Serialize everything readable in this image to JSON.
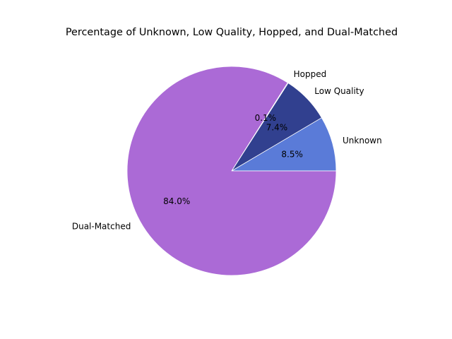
{
  "chart_data": {
    "type": "pie",
    "title": "Percentage of Unknown, Low Quality, Hopped, and Dual-Matched",
    "slices": [
      {
        "label": "Unknown",
        "value": 8.5,
        "pct_label": "8.5%",
        "color": "#5a7bd8"
      },
      {
        "label": "Low Quality",
        "value": 7.4,
        "pct_label": "7.4%",
        "color": "#31408f"
      },
      {
        "label": "Hopped",
        "value": 0.1,
        "pct_label": "0.1%",
        "color": "#31408f"
      },
      {
        "label": "Dual-Matched",
        "value": 84.0,
        "pct_label": "84.0%",
        "color": "#ab6ad6"
      }
    ],
    "start_angle": 0,
    "direction": "counterclockwise",
    "wedge_edge_color": "#ffffff"
  }
}
